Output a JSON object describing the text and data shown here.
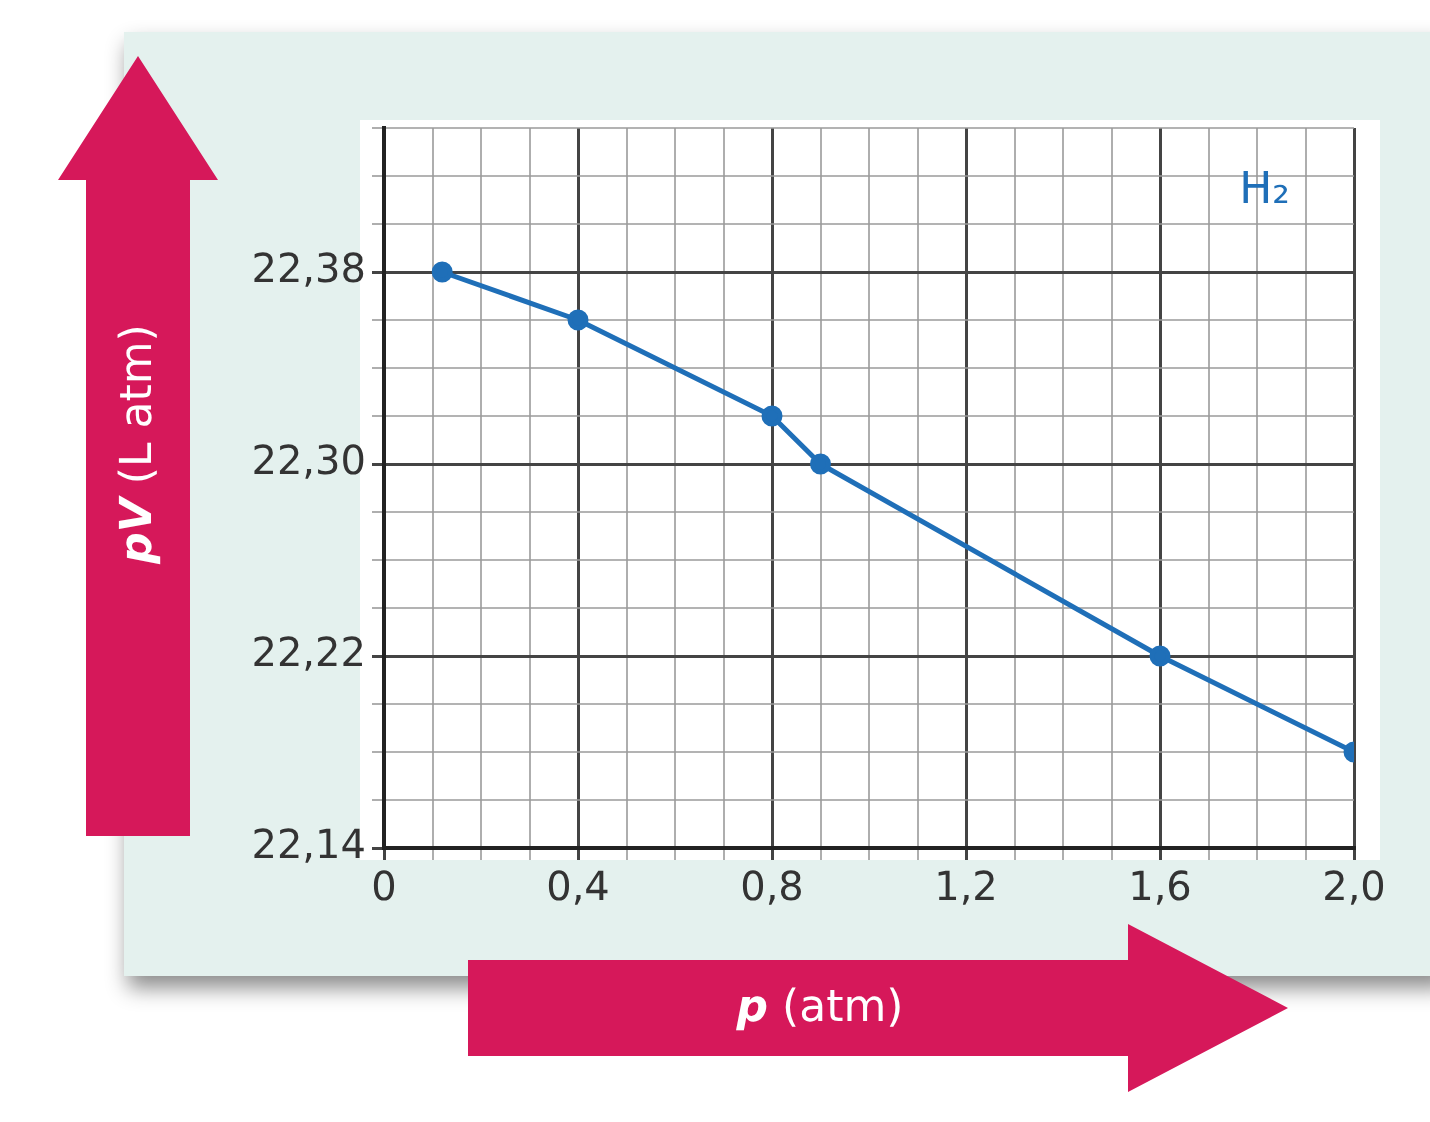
{
  "chart_data": {
    "type": "line",
    "xlabel": "p (atm)",
    "ylabel": "pV (L atm)",
    "x": [
      0.12,
      0.4,
      0.8,
      0.9,
      1.6,
      2.0
    ],
    "series": [
      {
        "name": "H₂",
        "color": "#1f6fb8",
        "values": [
          22.38,
          22.36,
          22.32,
          22.3,
          22.22,
          22.18
        ]
      }
    ],
    "xlim": [
      0,
      2.0
    ],
    "ylim": [
      22.14,
      22.44
    ],
    "xticks": [
      0,
      {
        "value": 0.1,
        "label": null
      },
      {
        "value": 0.2,
        "label": null
      },
      {
        "value": 0.3,
        "label": null
      },
      {
        "value": 0.4,
        "label": "0,4"
      },
      {
        "value": 0.5,
        "label": null
      },
      {
        "value": 0.6,
        "label": null
      },
      {
        "value": 0.7,
        "label": null
      },
      {
        "value": 0.8,
        "label": "0,8"
      },
      {
        "value": 0.9,
        "label": null
      },
      {
        "value": 1.0,
        "label": null
      },
      {
        "value": 1.1,
        "label": null
      },
      {
        "value": 1.2,
        "label": "1,2"
      },
      {
        "value": 1.3,
        "label": null
      },
      {
        "value": 1.4,
        "label": null
      },
      {
        "value": 1.5,
        "label": null
      },
      {
        "value": 1.6,
        "label": "1,6"
      },
      {
        "value": 1.7,
        "label": null
      },
      {
        "value": 1.8,
        "label": null
      },
      {
        "value": 1.9,
        "label": null
      },
      {
        "value": 2.0,
        "label": "2,0"
      }
    ],
    "yticks": [
      {
        "value": 22.14,
        "label": "22,14"
      },
      {
        "value": 22.16,
        "label": null
      },
      {
        "value": 22.18,
        "label": null
      },
      {
        "value": 22.2,
        "label": null
      },
      {
        "value": 22.22,
        "label": "22,22"
      },
      {
        "value": 22.24,
        "label": null
      },
      {
        "value": 22.26,
        "label": null
      },
      {
        "value": 22.28,
        "label": null
      },
      {
        "value": 22.3,
        "label": "22,30"
      },
      {
        "value": 22.32,
        "label": null
      },
      {
        "value": 22.34,
        "label": null
      },
      {
        "value": 22.36,
        "label": null
      },
      {
        "value": 22.38,
        "label": "22,38"
      },
      {
        "value": 22.4,
        "label": null
      },
      {
        "value": 22.42,
        "label": null
      },
      {
        "value": 22.44,
        "label": null
      }
    ],
    "grid": true,
    "marker": "circle",
    "line_style": "solid",
    "legend": false
  }
}
